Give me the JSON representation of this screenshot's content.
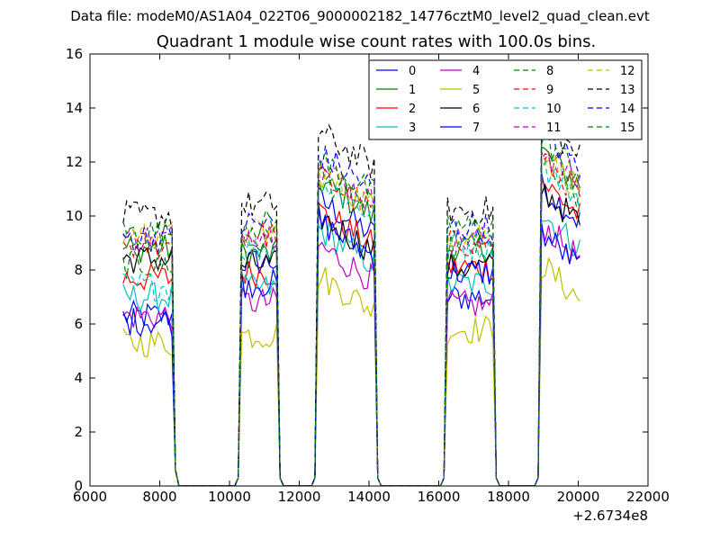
{
  "figure": {
    "suptitle": "Data file: modeM0/AS1A04_022T06_9000002182_14776cztM0_level2_quad_clean.evt"
  },
  "chart_data": {
    "type": "line",
    "title": "Quadrant 1 module wise count rates with 100.0s bins.",
    "xlabel": "",
    "ylabel": "",
    "x_offset_label": "+2.6734e8",
    "xlim": [
      6000,
      22000
    ],
    "ylim": [
      0,
      16
    ],
    "x_ticks": [
      6000,
      8000,
      10000,
      12000,
      14000,
      16000,
      18000,
      20000,
      22000
    ],
    "y_ticks": [
      0,
      2,
      4,
      6,
      8,
      10,
      12,
      14,
      16
    ],
    "grid": false,
    "legend_position": "top-right",
    "legend_columns": 4,
    "segments": [
      {
        "start": 6950,
        "end": 8350
      },
      {
        "start": 10350,
        "end": 11350
      },
      {
        "start": 12550,
        "end": 14150
      },
      {
        "start": 16250,
        "end": 17550
      },
      {
        "start": 18950,
        "end": 20050
      }
    ],
    "zero_x": [
      8550,
      9000,
      9500,
      10000,
      10150,
      11550,
      12350,
      14350,
      15000,
      15500,
      16050,
      17750,
      18200,
      18750
    ],
    "edge_points": [
      {
        "x": 8450,
        "y": 0.6
      },
      {
        "x": 10250,
        "y": 0.3
      },
      {
        "x": 11450,
        "y": 0.3
      },
      {
        "x": 12450,
        "y": 0.3
      },
      {
        "x": 14250,
        "y": 0.3
      },
      {
        "x": 16150,
        "y": 0.3
      },
      {
        "x": 17650,
        "y": 0.3
      },
      {
        "x": 18850,
        "y": 0.3
      }
    ],
    "series": [
      {
        "name": "0",
        "color": "#0000ff",
        "style": "solid",
        "levels": [
          6.3,
          8.3,
          9.7,
          7.0,
          10.2
        ]
      },
      {
        "name": "1",
        "color": "#008000",
        "style": "solid",
        "levels": [
          8.8,
          8.6,
          10.4,
          8.8,
          11.5
        ]
      },
      {
        "name": "2",
        "color": "#ff0000",
        "style": "solid",
        "levels": [
          7.7,
          7.9,
          9.3,
          8.1,
          10.4
        ]
      },
      {
        "name": "3",
        "color": "#00bfbf",
        "style": "solid",
        "levels": [
          7.0,
          7.3,
          8.6,
          7.5,
          9.2
        ]
      },
      {
        "name": "4",
        "color": "#bf00bf",
        "style": "solid",
        "levels": [
          6.3,
          6.8,
          8.0,
          6.7,
          8.8
        ]
      },
      {
        "name": "5",
        "color": "#bfbf00",
        "style": "solid",
        "levels": [
          5.3,
          5.6,
          6.9,
          5.8,
          7.3
        ]
      },
      {
        "name": "6",
        "color": "#000000",
        "style": "solid",
        "levels": [
          8.4,
          8.2,
          9.1,
          8.1,
          10.1
        ]
      },
      {
        "name": "7",
        "color": "#0000ff",
        "style": "solid",
        "levels": [
          6.1,
          7.5,
          8.9,
          7.9,
          8.5
        ]
      },
      {
        "name": "8",
        "color": "#008000",
        "style": "dashed",
        "levels": [
          8.2,
          9.0,
          10.6,
          8.8,
          11.0
        ]
      },
      {
        "name": "9",
        "color": "#ff0000",
        "style": "dashed",
        "levels": [
          8.9,
          9.3,
          10.6,
          9.0,
          11.2
        ]
      },
      {
        "name": "10",
        "color": "#00bfbf",
        "style": "dashed",
        "levels": [
          7.4,
          8.8,
          10.4,
          8.9,
          11.0
        ]
      },
      {
        "name": "11",
        "color": "#bf00bf",
        "style": "dashed",
        "levels": [
          9.2,
          9.4,
          10.9,
          9.1,
          11.6
        ]
      },
      {
        "name": "12",
        "color": "#bfbf00",
        "style": "dashed",
        "levels": [
          9.3,
          9.4,
          10.7,
          9.4,
          11.4
        ]
      },
      {
        "name": "13",
        "color": "#000000",
        "style": "dashed",
        "levels": [
          10.0,
          10.4,
          12.2,
          10.2,
          12.6
        ]
      },
      {
        "name": "14",
        "color": "#0000ff",
        "style": "dashed",
        "levels": [
          9.2,
          9.7,
          11.4,
          9.6,
          12.2
        ]
      },
      {
        "name": "15",
        "color": "#008000",
        "style": "dashed",
        "levels": [
          9.4,
          9.7,
          11.2,
          9.6,
          12.0
        ]
      }
    ]
  }
}
